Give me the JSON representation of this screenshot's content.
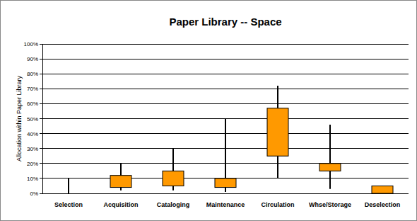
{
  "chart_data": {
    "type": "box",
    "title": "Paper Library -- Space",
    "y_label": "Allocation within Paper Library",
    "categories": [
      "Selection",
      "Acquisition",
      "Cataloging",
      "Maintenance",
      "Circulation",
      "Whse/Storage",
      "Deselection"
    ],
    "min": [
      0,
      2,
      2,
      1,
      10,
      3,
      0
    ],
    "q1": [
      5,
      4,
      5,
      4,
      25,
      15,
      0
    ],
    "q3": [
      5,
      12,
      15,
      10,
      57,
      20,
      5
    ],
    "max": [
      10,
      20,
      30,
      50,
      72,
      46,
      5
    ],
    "color": "#ff9900",
    "ylim": [
      0,
      100
    ],
    "yticks": [
      {
        "value": 0,
        "label": "0%"
      },
      {
        "value": 10,
        "label": "10%"
      },
      {
        "value": 20,
        "label": "20%"
      },
      {
        "value": 30,
        "label": "30%"
      },
      {
        "value": 40,
        "label": "40%"
      },
      {
        "value": 50,
        "label": "50%"
      },
      {
        "value": 60,
        "label": "60%"
      },
      {
        "value": 70,
        "label": "70%"
      },
      {
        "value": 80,
        "label": "80%"
      },
      {
        "value": 90,
        "label": "90%"
      },
      {
        "value": 100,
        "label": "100%"
      }
    ],
    "grid": true
  }
}
